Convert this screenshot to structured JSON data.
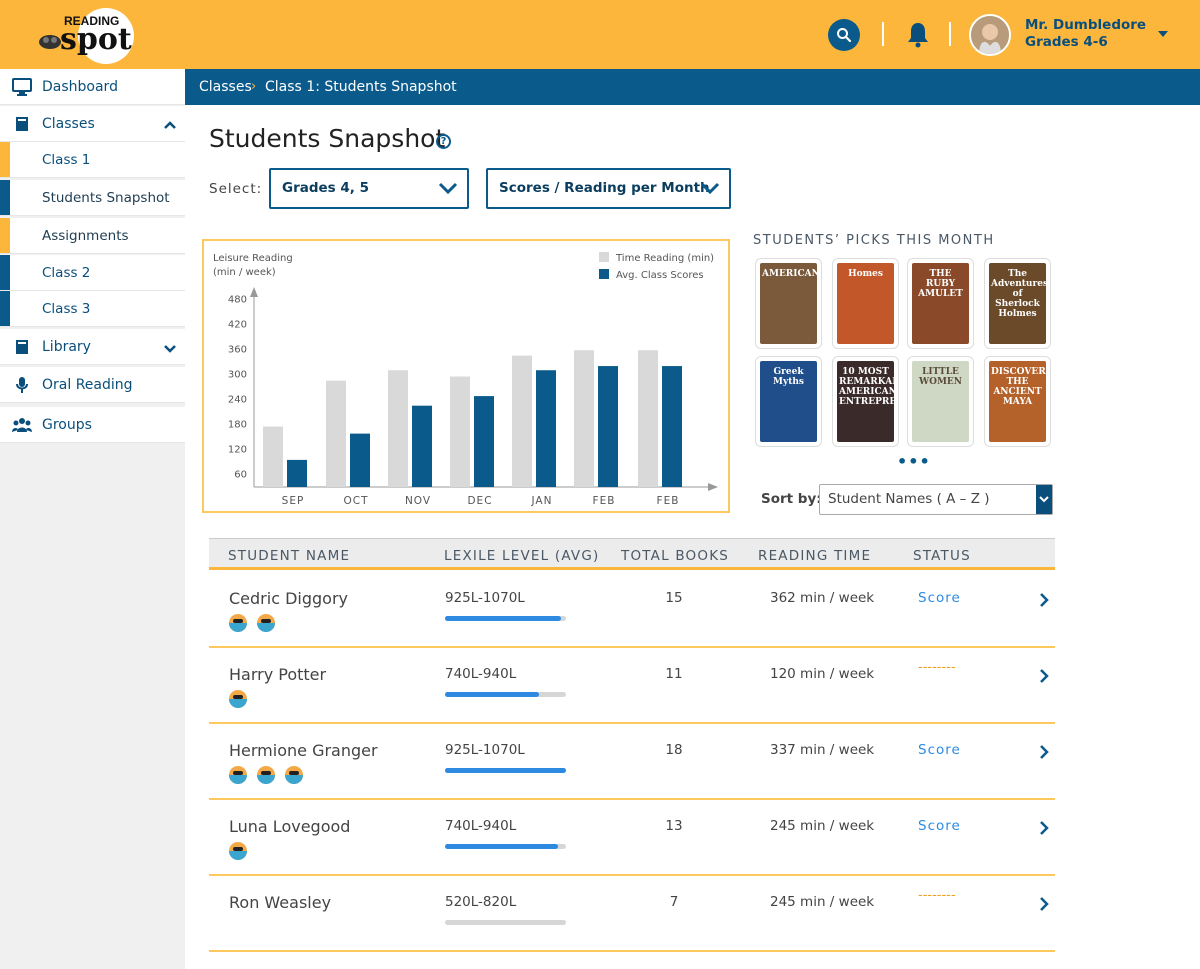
{
  "app": {
    "logo_top": "READING",
    "logo_bottom": "spot"
  },
  "header": {
    "user_name": "Mr. Dumbledore",
    "user_grades": "Grades 4-6"
  },
  "sidebar": {
    "items": [
      {
        "label": "Dashboard",
        "icon": "monitor-icon"
      },
      {
        "label": "Classes",
        "icon": "book-icon"
      },
      {
        "label": "Class 1"
      },
      {
        "label": "Students Snapshot"
      },
      {
        "label": "Assignments"
      },
      {
        "label": "Class 2"
      },
      {
        "label": "Class 3"
      },
      {
        "label": "Library",
        "icon": "book-icon"
      },
      {
        "label": "Oral Reading",
        "icon": "microphone-icon"
      },
      {
        "label": "Groups",
        "icon": "group-icon"
      }
    ]
  },
  "breadcrumb": {
    "items": [
      "Classes",
      "Class 1: Students Snapshot"
    ],
    "separator": "›"
  },
  "main": {
    "title": "Students Snapshot",
    "help": "?",
    "select_label": "Select:",
    "grade_select": "Grades 4, 5",
    "metric_select": "Scores / Reading per Month"
  },
  "chart_data": {
    "type": "bar",
    "ylabel_line1": "Leisure Reading",
    "ylabel_line2": "(min / week)",
    "categories": [
      "SEP",
      "OCT",
      "NOV",
      "DEC",
      "JAN",
      "FEB",
      "FEB"
    ],
    "yticks": [
      60,
      120,
      180,
      240,
      300,
      360,
      420,
      480
    ],
    "ylim": [
      30,
      500
    ],
    "legend_position": "top-right",
    "series": [
      {
        "name": "Time Reading (min)",
        "color": "#d9d9d9",
        "values": [
          175,
          285,
          310,
          295,
          345,
          358,
          358
        ]
      },
      {
        "name": "Avg. Class Scores",
        "color": "#0a5a8c",
        "values": [
          95,
          158,
          225,
          248,
          310,
          320,
          320
        ]
      }
    ]
  },
  "picks": {
    "title": "STUDENTS’ PICKS THIS MONTH",
    "books": [
      {
        "title": "AMERICAN",
        "color": "#7a5a3a"
      },
      {
        "title": "Homes",
        "color": "#c2582a"
      },
      {
        "title": "THE RUBY AMULET",
        "color": "#8a4a2a"
      },
      {
        "title": "The Adventures of Sherlock Holmes",
        "color": "#6b4a2a"
      },
      {
        "title": "Greek Myths",
        "color": "#1f4e8a"
      },
      {
        "title": "10 MOST REMARKABLE AMERICAN ENTREPRENEURS",
        "color": "#3a2a2a"
      },
      {
        "title": "LITTLE WOMEN",
        "color": "#cfd8c4"
      },
      {
        "title": "DISCOVERING THE ANCIENT MAYA",
        "color": "#b5622a"
      }
    ],
    "more": "•••"
  },
  "sort": {
    "label": "Sort by:",
    "value": "Student Names  ( A – Z )"
  },
  "table": {
    "headers": [
      "STUDENT NAME",
      "LEXILE LEVEL (AVG)",
      "TOTAL BOOKS",
      "READING TIME",
      "STATUS"
    ],
    "rows": [
      {
        "name": "Cedric Diggory",
        "faces": 2,
        "lexile": "925L-1070L",
        "lexile_progress": 0.96,
        "books": "15",
        "time": "362 min / week",
        "status": "Score"
      },
      {
        "name": "Harry Potter",
        "faces": 1,
        "lexile": "740L-940L",
        "lexile_progress": 0.78,
        "books": "11",
        "time": "120 min / week",
        "status": "--------"
      },
      {
        "name": "Hermione Granger",
        "faces": 3,
        "lexile": "925L-1070L",
        "lexile_progress": 1.0,
        "books": "18",
        "time": "337 min / week",
        "status": "Score"
      },
      {
        "name": "Luna Lovegood",
        "faces": 1,
        "lexile": "740L-940L",
        "lexile_progress": 0.93,
        "books": "13",
        "time": "245 min / week",
        "status": "Score"
      },
      {
        "name": "Ron Weasley",
        "faces": 0,
        "lexile": "520L-820L",
        "lexile_progress": 0.0,
        "books": "7",
        "time": "245 min / week",
        "status": "--------"
      }
    ]
  }
}
